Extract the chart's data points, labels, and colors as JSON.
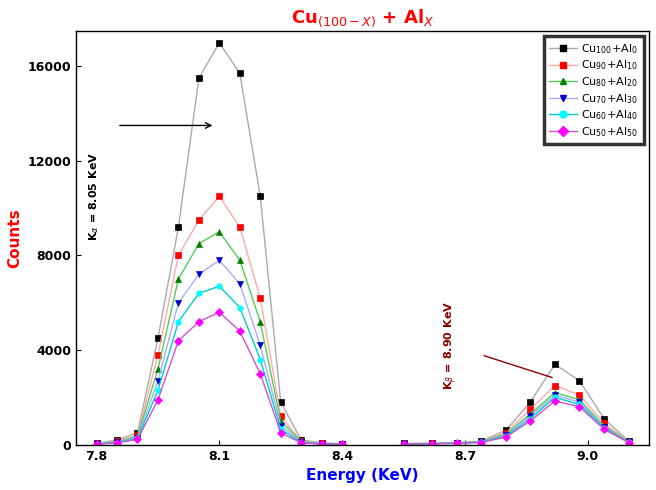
{
  "title": "Cu$_{(100-X)}$ + Al$_X$",
  "xlabel": "Energy (KeV)",
  "ylabel": "Counts",
  "xlim": [
    7.75,
    9.15
  ],
  "ylim": [
    0,
    17500
  ],
  "yticks": [
    0,
    4000,
    8000,
    12000,
    16000
  ],
  "xticks": [
    7.8,
    8.1,
    8.4,
    8.7,
    9.0
  ],
  "series": [
    {
      "label": "Cu$_{100}$+Al$_0$",
      "color": "#aaaaaa",
      "marker": "s",
      "markercolor": "black",
      "energy_alpha": [
        7.8,
        7.85,
        7.9,
        7.95,
        8.0,
        8.05,
        8.1,
        8.15,
        8.2,
        8.25,
        8.3,
        8.35,
        8.4
      ],
      "counts_alpha": [
        50,
        200,
        500,
        4500,
        9200,
        15500,
        17000,
        15700,
        10500,
        1800,
        200,
        80,
        30
      ],
      "energy_beta": [
        8.55,
        8.62,
        8.68,
        8.74,
        8.8,
        8.86,
        8.92,
        8.98,
        9.04,
        9.1
      ],
      "counts_beta": [
        50,
        60,
        80,
        150,
        600,
        1800,
        3400,
        2700,
        1100,
        150
      ]
    },
    {
      "label": "Cu$_{90}$+Al$_{10}$",
      "color": "#ffaaaa",
      "marker": "s",
      "markercolor": "red",
      "energy_alpha": [
        7.8,
        7.85,
        7.9,
        7.95,
        8.0,
        8.05,
        8.1,
        8.15,
        8.2,
        8.25,
        8.3,
        8.35,
        8.4
      ],
      "counts_alpha": [
        40,
        150,
        400,
        3800,
        8000,
        9500,
        10500,
        9200,
        6200,
        1200,
        150,
        60,
        25
      ],
      "energy_beta": [
        8.55,
        8.62,
        8.68,
        8.74,
        8.8,
        8.86,
        8.92,
        8.98,
        9.04,
        9.1
      ],
      "counts_beta": [
        40,
        55,
        75,
        130,
        500,
        1500,
        2500,
        2100,
        900,
        130
      ]
    },
    {
      "label": "Cu$_{80}$+Al$_{20}$",
      "color": "#55cc55",
      "marker": "^",
      "markercolor": "green",
      "energy_alpha": [
        7.8,
        7.85,
        7.9,
        7.95,
        8.0,
        8.05,
        8.1,
        8.15,
        8.2,
        8.25,
        8.3,
        8.35,
        8.4
      ],
      "counts_alpha": [
        35,
        130,
        350,
        3200,
        7000,
        8500,
        9000,
        7800,
        5200,
        1000,
        130,
        50,
        20
      ],
      "energy_beta": [
        8.55,
        8.62,
        8.68,
        8.74,
        8.8,
        8.86,
        8.92,
        8.98,
        9.04,
        9.1
      ],
      "counts_beta": [
        35,
        50,
        70,
        120,
        450,
        1300,
        2200,
        1900,
        800,
        120
      ]
    },
    {
      "label": "Cu$_{70}$+Al$_{30}$",
      "color": "#aaaaff",
      "marker": "v",
      "markercolor": "#0000cc",
      "energy_alpha": [
        7.8,
        7.85,
        7.9,
        7.95,
        8.0,
        8.05,
        8.1,
        8.15,
        8.2,
        8.25,
        8.3,
        8.35,
        8.4
      ],
      "counts_alpha": [
        30,
        110,
        300,
        2700,
        6000,
        7200,
        7800,
        6800,
        4200,
        800,
        110,
        45,
        18
      ],
      "energy_beta": [
        8.55,
        8.62,
        8.68,
        8.74,
        8.8,
        8.86,
        8.92,
        8.98,
        9.04,
        9.1
      ],
      "counts_beta": [
        30,
        45,
        65,
        110,
        400,
        1200,
        2100,
        1800,
        750,
        110
      ]
    },
    {
      "label": "Cu$_{60}$+Al$_{40}$",
      "color": "#00cccc",
      "marker": "o",
      "markercolor": "cyan",
      "energy_alpha": [
        7.8,
        7.85,
        7.9,
        7.95,
        8.0,
        8.05,
        8.1,
        8.15,
        8.2,
        8.25,
        8.3,
        8.35,
        8.4
      ],
      "counts_alpha": [
        25,
        90,
        260,
        2300,
        5200,
        6400,
        6700,
        5800,
        3600,
        650,
        90,
        38,
        15
      ],
      "energy_beta": [
        8.55,
        8.62,
        8.68,
        8.74,
        8.8,
        8.86,
        8.92,
        8.98,
        9.04,
        9.1
      ],
      "counts_beta": [
        25,
        40,
        60,
        100,
        360,
        1100,
        2000,
        1700,
        700,
        100
      ]
    },
    {
      "label": "Cu$_{50}$+Al$_{50}$",
      "color": "#cc55cc",
      "marker": "D",
      "markercolor": "magenta",
      "energy_alpha": [
        7.8,
        7.85,
        7.9,
        7.95,
        8.0,
        8.05,
        8.1,
        8.15,
        8.2,
        8.25,
        8.3,
        8.35,
        8.4
      ],
      "counts_alpha": [
        20,
        75,
        220,
        1900,
        4400,
        5200,
        5600,
        4800,
        3000,
        500,
        75,
        30,
        12
      ],
      "energy_beta": [
        8.55,
        8.62,
        8.68,
        8.74,
        8.8,
        8.86,
        8.92,
        8.98,
        9.04,
        9.1
      ],
      "counts_beta": [
        20,
        35,
        55,
        90,
        320,
        1000,
        1850,
        1600,
        650,
        90
      ]
    }
  ],
  "background_color": "white",
  "title_color": "red"
}
